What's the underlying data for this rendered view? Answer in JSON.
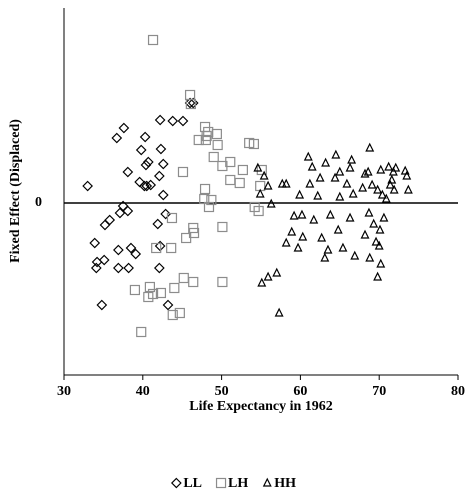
{
  "chart_data": {
    "type": "scatter",
    "x_label": "Life Expectancy in 1962",
    "y_label": "Fixed Effect (Displaced)",
    "xlim": [
      30,
      80
    ],
    "xticks": [
      30,
      40,
      50,
      60,
      70,
      80
    ],
    "ylim": [
      -1.72,
      1.95
    ],
    "yticks": [
      0
    ],
    "zero_line": true,
    "series": [
      {
        "name": "LL",
        "color": "#000000",
        "marker": "diamond",
        "x": [
          33.0,
          37.6,
          36.7,
          40.3,
          42.2,
          43.8,
          40.7,
          40.4,
          42.3,
          42.6,
          42.1,
          38.1,
          40.2,
          40.5,
          41.0,
          38.1,
          42.6,
          37.1,
          37.5,
          35.2,
          35.8,
          33.9,
          34.2,
          34.1,
          35.1,
          36.9,
          36.9,
          38.5,
          38.2,
          39.1,
          42.1,
          42.2,
          42.9,
          41.9,
          43.2,
          34.8,
          39.8,
          39.6,
          46.0,
          46.4,
          45.1
        ],
        "values": [
          0.17,
          0.75,
          0.65,
          0.66,
          0.83,
          0.82,
          0.41,
          0.38,
          0.54,
          0.39,
          0.27,
          0.31,
          0.17,
          0.17,
          0.18,
          -0.08,
          0.08,
          -0.1,
          -0.03,
          -0.22,
          -0.17,
          -0.4,
          -0.59,
          -0.65,
          -0.57,
          -0.47,
          -0.65,
          -0.45,
          -0.65,
          -0.51,
          -0.65,
          -0.43,
          -0.11,
          -0.21,
          -1.02,
          -1.02,
          0.53,
          0.21,
          1.0,
          1.0,
          0.82
        ]
      },
      {
        "name": "LH",
        "color": "#8c8c8c",
        "marker": "square",
        "x": [
          41.3,
          46.0,
          46.1,
          47.9,
          48.3,
          48.1,
          48.0,
          49.5,
          49.0,
          50.1,
          51.1,
          51.1,
          53.5,
          54.1,
          55.1,
          54.9,
          52.3,
          52.7,
          49.4,
          47.1,
          45.1,
          47.9,
          47.8,
          48.7,
          48.4,
          54.2,
          54.7,
          46.4,
          45.5,
          46.5,
          43.7,
          43.6,
          41.7,
          46.4,
          45.2,
          50.1,
          44.0,
          43.8,
          44.7,
          39.8,
          40.9,
          42.3,
          41.3,
          39.0,
          40.7,
          50.1
        ],
        "values": [
          1.63,
          1.08,
          0.99,
          0.76,
          0.71,
          0.67,
          0.63,
          0.58,
          0.46,
          0.37,
          0.41,
          0.23,
          0.6,
          0.59,
          0.33,
          0.17,
          0.2,
          0.33,
          0.69,
          0.63,
          0.31,
          0.14,
          0.04,
          0.03,
          -0.04,
          -0.04,
          -0.08,
          -0.25,
          -0.35,
          -0.3,
          -0.15,
          -0.45,
          -0.45,
          -0.79,
          -0.75,
          -0.79,
          -0.85,
          -1.12,
          -1.1,
          -1.29,
          -0.84,
          -0.9,
          -0.91,
          -0.87,
          -0.94,
          -0.24
        ]
      },
      {
        "name": "HH",
        "color": "#000000",
        "marker": "triangle",
        "x": [
          54.6,
          55.4,
          55.9,
          54.9,
          57.7,
          58.2,
          56.3,
          59.9,
          61.0,
          61.5,
          61.2,
          62.2,
          62.5,
          63.2,
          64.4,
          65.0,
          64.5,
          66.3,
          66.5,
          65.9,
          65.0,
          66.7,
          67.9,
          68.2,
          68.8,
          69.8,
          70.2,
          71.2,
          71.8,
          71.6,
          71.9,
          72.1,
          73.3,
          73.5,
          73.7,
          60.2,
          60.3,
          59.7,
          58.9,
          58.2,
          57.0,
          55.9,
          55.1,
          57.3,
          59.2,
          61.7,
          62.7,
          63.1,
          63.5,
          63.8,
          64.8,
          65.4,
          66.3,
          66.9,
          68.2,
          68.7,
          69.3,
          69.6,
          68.8,
          70.0,
          70.2,
          69.8,
          70.1,
          70.6,
          70.4,
          70.9,
          71.4,
          69.1,
          68.6
        ],
        "values": [
          0.35,
          0.27,
          0.17,
          0.09,
          0.19,
          0.19,
          -0.01,
          0.08,
          0.46,
          0.36,
          0.19,
          0.07,
          0.25,
          0.4,
          0.25,
          0.31,
          0.48,
          0.35,
          0.43,
          0.19,
          0.06,
          0.09,
          0.15,
          0.29,
          0.55,
          0.13,
          0.33,
          0.36,
          0.31,
          0.23,
          0.13,
          0.35,
          0.32,
          0.27,
          0.13,
          -0.12,
          -0.34,
          -0.45,
          -0.29,
          -0.4,
          -0.7,
          -0.74,
          -0.8,
          -1.1,
          -0.13,
          -0.17,
          -0.35,
          -0.55,
          -0.47,
          -0.12,
          -0.27,
          -0.45,
          -0.15,
          -0.53,
          -0.32,
          -0.1,
          -0.21,
          -0.39,
          -0.55,
          -0.43,
          -0.61,
          -0.74,
          -0.27,
          -0.15,
          0.08,
          0.04,
          0.18,
          0.18,
          0.31
        ]
      }
    ]
  }
}
